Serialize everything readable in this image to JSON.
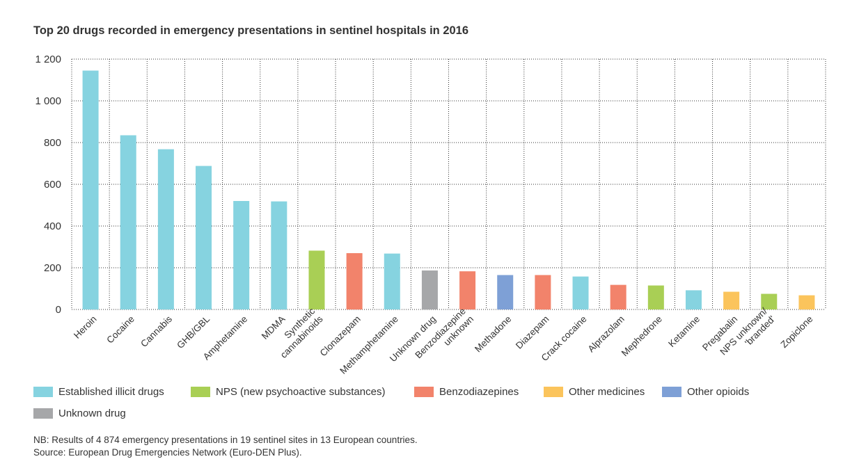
{
  "chart_data": {
    "type": "bar",
    "title": "Top 20 drugs recorded in emergency presentations in sentinel hospitals in 2016",
    "xlabel": "",
    "ylabel": "",
    "ylim": [
      0,
      1200
    ],
    "yticks": [
      0,
      200,
      400,
      600,
      800,
      1000,
      1200
    ],
    "ytick_labels": [
      "0",
      "200",
      "400",
      "600",
      "800",
      "1 000",
      "1 200"
    ],
    "grid": "dotted",
    "categories": [
      "Heroin",
      "Cocaine",
      "Cannabis",
      "GHB/GBL",
      "Amphetamine",
      "MDMA",
      "Synthetic cannabinoids",
      "Clonazepam",
      "Methamphetamine",
      "Unknown drug",
      "Benzodiazepine unknown",
      "Methadone",
      "Diazepam",
      "Crack cocaine",
      "Alprazolam",
      "Mephedrone",
      "Ketamine",
      "Pregabalin",
      "NPS unknown/ 'branded'",
      "Zopiclone"
    ],
    "category_lines": [
      [
        "Heroin"
      ],
      [
        "Cocaine"
      ],
      [
        "Cannabis"
      ],
      [
        "GHB/GBL"
      ],
      [
        "Amphetamine"
      ],
      [
        "MDMA"
      ],
      [
        "Synthetic",
        "cannabinoids"
      ],
      [
        "Clonazepam"
      ],
      [
        "Methamphetamine"
      ],
      [
        "Unknown drug"
      ],
      [
        "Benzodiazepine",
        "unknown"
      ],
      [
        "Methadone"
      ],
      [
        "Diazepam"
      ],
      [
        "Crack cocaine"
      ],
      [
        "Alprazolam"
      ],
      [
        "Mephedrone"
      ],
      [
        "Ketamine"
      ],
      [
        "Pregabalin"
      ],
      [
        "NPS unknown/",
        "'branded'"
      ],
      [
        "Zopiclone"
      ]
    ],
    "values": [
      1145,
      835,
      768,
      688,
      520,
      518,
      282,
      270,
      268,
      187,
      183,
      165,
      165,
      158,
      118,
      115,
      92,
      85,
      75,
      68
    ],
    "groups": [
      "Established illicit drugs",
      "Established illicit drugs",
      "Established illicit drugs",
      "Established illicit drugs",
      "Established illicit drugs",
      "Established illicit drugs",
      "NPS (new psychoactive substances)",
      "Benzodiazepines",
      "Established illicit drugs",
      "Unknown drug",
      "Benzodiazepines",
      "Other opioids",
      "Benzodiazepines",
      "Established illicit drugs",
      "Benzodiazepines",
      "NPS (new psychoactive substances)",
      "Established illicit drugs",
      "Other medicines",
      "NPS (new psychoactive substances)",
      "Other medicines"
    ],
    "legend": [
      {
        "name": "Established illicit drugs",
        "color": "#86d3e0"
      },
      {
        "name": "NPS (new psychoactive substances)",
        "color": "#a9cf55"
      },
      {
        "name": "Benzodiazepines",
        "color": "#f2836b"
      },
      {
        "name": "Other medicines",
        "color": "#fbc45c"
      },
      {
        "name": "Other opioids",
        "color": "#7ea0d6"
      },
      {
        "name": "Unknown drug",
        "color": "#a6a7a9"
      }
    ],
    "legend_placement": "bottom"
  },
  "notes": {
    "nb": "NB: Results of 4 874 emergency presentations in 19 sentinel sites in 13 European countries.",
    "source": "Source: European Drug Emergencies Network (Euro-DEN Plus)."
  }
}
